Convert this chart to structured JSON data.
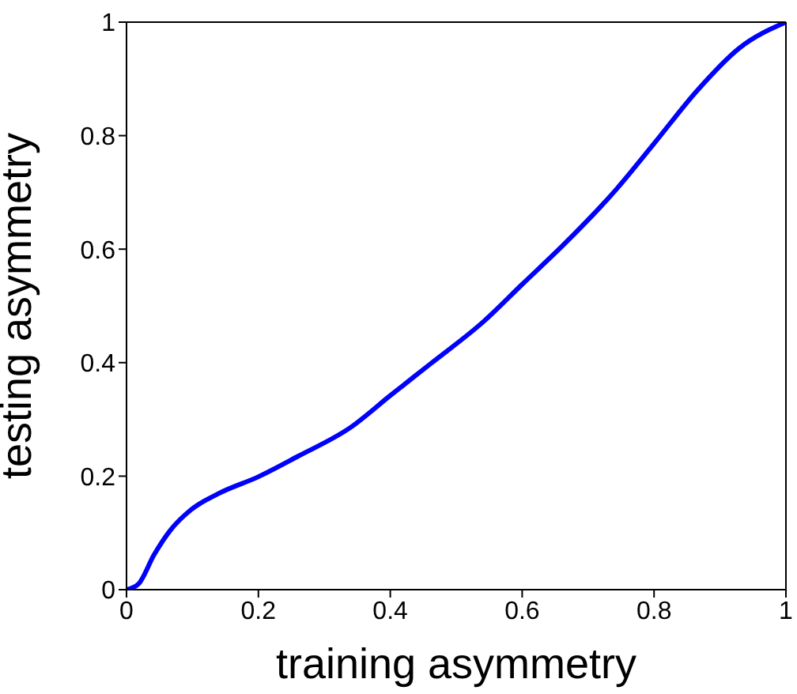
{
  "chart_data": {
    "type": "line",
    "xlabel": "training asymmetry",
    "ylabel": "testing asymmetry",
    "x": [
      0,
      0.018,
      0.042,
      0.066,
      0.098,
      0.139,
      0.2,
      0.26,
      0.34,
      0.4,
      0.461,
      0.542,
      0.6,
      0.663,
      0.744,
      0.8,
      0.865,
      0.929,
      1
    ],
    "series": [
      {
        "color": "#0000ff",
        "values": [
          0,
          0.01,
          0.062,
          0.104,
          0.141,
          0.169,
          0.199,
          0.235,
          0.286,
          0.342,
          0.398,
          0.473,
          0.538,
          0.608,
          0.707,
          0.786,
          0.879,
          0.954,
          1
        ]
      }
    ],
    "xlim": [
      0,
      1
    ],
    "ylim": [
      0,
      1
    ],
    "xticks": [
      0,
      0.2,
      0.4,
      0.6,
      0.8,
      1
    ],
    "yticks": [
      0,
      0.2,
      0.4,
      0.6,
      0.8,
      1
    ],
    "grid": false,
    "legend": false
  }
}
